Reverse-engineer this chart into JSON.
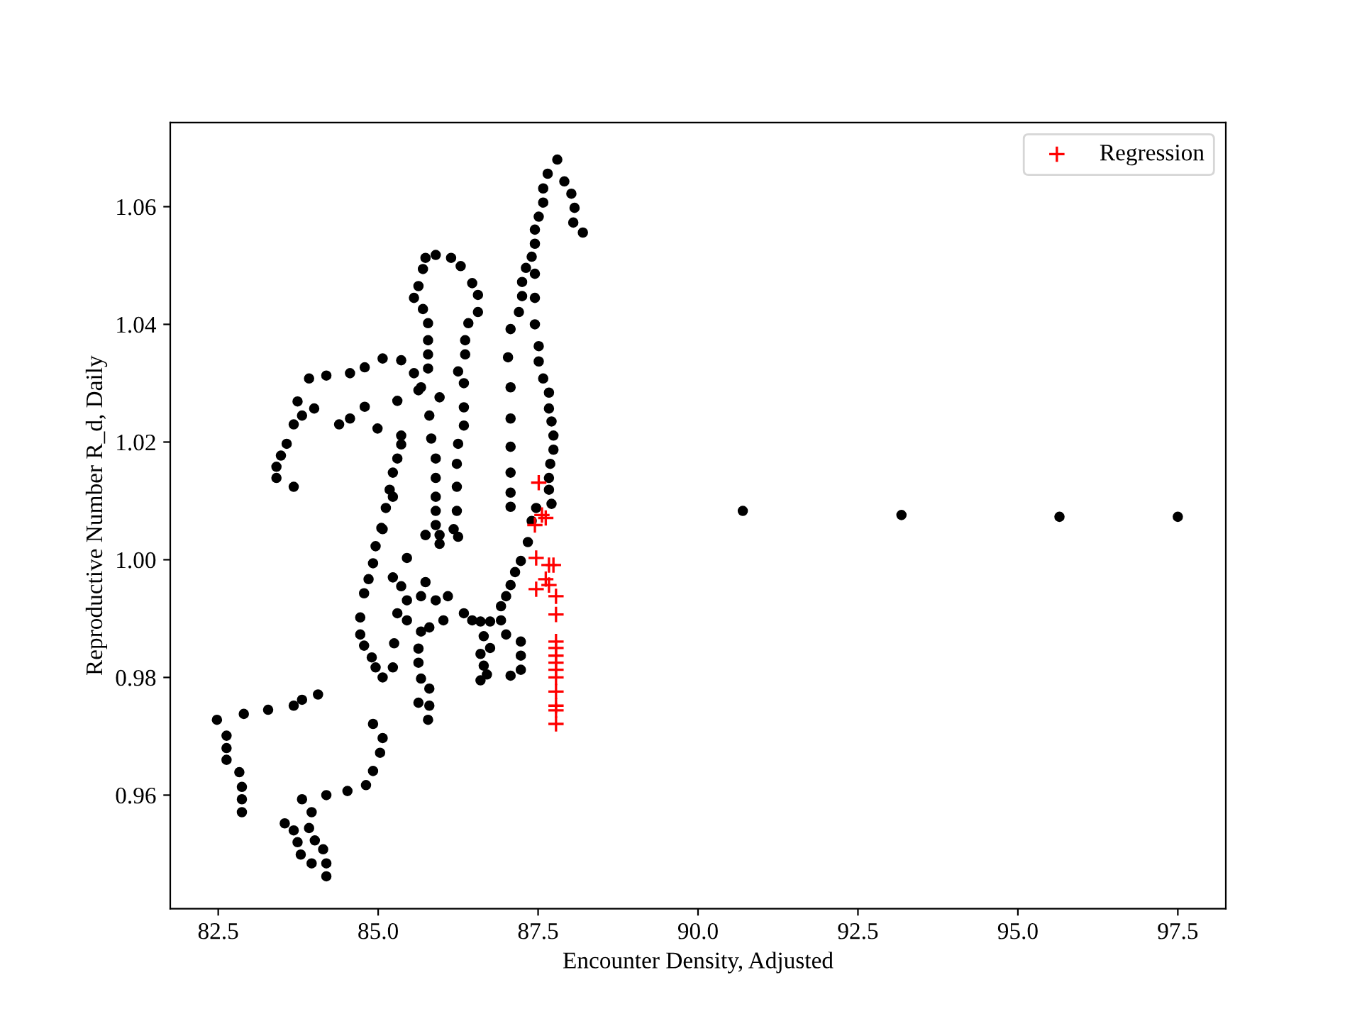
{
  "chart_data": {
    "type": "scatter",
    "xlabel": "Encounter Density, Adjusted",
    "ylabel": "Reproductive Number R_d, Daily",
    "xlim": [
      81.75,
      98.25
    ],
    "ylim": [
      0.9407,
      1.0743
    ],
    "xticks": [
      {
        "value": 82.5,
        "label": "82.5"
      },
      {
        "value": 85,
        "label": "85.0"
      },
      {
        "value": 87.5,
        "label": "87.5"
      },
      {
        "value": 90,
        "label": "90.0"
      },
      {
        "value": 92.5,
        "label": "92.5"
      },
      {
        "value": 95,
        "label": "95.0"
      },
      {
        "value": 97.5,
        "label": "97.5"
      }
    ],
    "yticks": [
      {
        "value": 0.96,
        "label": "0.96"
      },
      {
        "value": 0.98,
        "label": "0.98"
      },
      {
        "value": 1.0,
        "label": "1.00"
      },
      {
        "value": 1.02,
        "label": "1.02"
      },
      {
        "value": 1.04,
        "label": "1.04"
      },
      {
        "value": 1.06,
        "label": "1.06"
      }
    ],
    "grid": false,
    "legend": "top right",
    "series": [
      {
        "color": "#000000",
        "marker": "circle",
        "x": [
          82.48,
          82.63,
          82.63,
          82.63,
          82.83,
          82.87,
          82.87,
          82.87,
          82.9,
          83.28,
          83.68,
          83.81,
          84.06,
          83.54,
          83.68,
          83.74,
          83.79,
          83.96,
          84.19,
          84.19,
          84.14,
          84.01,
          83.92,
          83.96,
          83.81,
          84.19,
          84.52,
          84.81,
          84.92,
          85.03,
          85.07,
          84.92,
          85.07,
          84.96,
          84.9,
          84.78,
          84.72,
          84.72,
          84.78,
          84.85,
          84.92,
          84.96,
          85.07,
          85.05,
          85.12,
          85.23,
          85.18,
          85.23,
          85.3,
          85.36,
          85.36,
          85.3,
          84.99,
          83.41,
          83.41,
          83.48,
          83.57,
          83.68,
          83.81,
          83.74,
          83.92,
          84.19,
          84.56,
          84.79,
          85.07,
          85.36,
          85.56,
          85.67,
          85.96,
          83.68,
          84.0,
          84.39,
          84.56,
          84.79,
          85.56,
          85.63,
          85.7,
          85.74,
          85.9,
          86.14,
          86.29,
          86.47,
          86.56,
          86.56,
          86.41,
          86.36,
          86.36,
          86.25,
          86.34,
          86.34,
          86.34,
          86.25,
          86.23,
          86.23,
          86.23,
          86.18,
          85.7,
          85.78,
          85.78,
          85.78,
          85.78,
          85.63,
          85.8,
          85.83,
          85.9,
          85.9,
          85.9,
          85.9,
          85.9,
          85.74,
          85.96,
          87.07,
          87.03,
          87.07,
          87.07,
          87.07,
          87.07,
          87.07,
          87.07,
          87.2,
          87.25,
          87.25,
          87.31,
          87.4,
          87.45,
          87.45,
          87.51,
          87.58,
          87.58,
          87.65,
          87.8,
          87.91,
          88.02,
          88.07,
          88.05,
          88.2,
          87.45,
          87.45,
          87.45,
          87.51,
          87.51,
          87.58,
          87.67,
          87.67,
          87.71,
          87.74,
          87.74,
          87.69,
          87.67,
          87.67,
          87.71,
          87.47,
          87.4,
          87.34,
          87.23,
          87.14,
          87.07,
          87.0,
          86.92,
          86.92,
          87.0,
          87.23,
          87.23,
          87.23,
          87.07,
          86.6,
          86.75,
          86.65,
          86.75,
          86.6,
          86.65,
          86.6,
          86.7,
          86.09,
          86.34,
          86.47,
          85.45,
          85.23,
          85.36,
          85.45,
          85.3,
          85.67,
          85.74,
          85.9,
          85.45,
          85.25,
          85.23,
          85.67,
          85.8,
          86.02,
          85.63,
          85.63,
          85.67,
          85.8,
          85.8,
          85.78,
          85.63,
          85.74,
          85.96,
          86.25,
          90.7,
          93.18,
          95.65,
          97.5
        ],
        "values": [
          0.9728,
          0.9701,
          0.968,
          0.966,
          0.9639,
          0.9614,
          0.9593,
          0.9571,
          0.9738,
          0.9745,
          0.9752,
          0.9762,
          0.9771,
          0.9552,
          0.954,
          0.952,
          0.9499,
          0.9484,
          0.9462,
          0.9484,
          0.9508,
          0.9523,
          0.9544,
          0.9571,
          0.9593,
          0.96,
          0.9607,
          0.9617,
          0.9641,
          0.9672,
          0.9697,
          0.9721,
          0.98,
          0.9817,
          0.9834,
          0.9854,
          0.9873,
          0.9902,
          0.9943,
          0.9967,
          0.9994,
          1.0023,
          1.0052,
          1.0054,
          1.0088,
          1.0107,
          1.0119,
          1.0148,
          1.0172,
          1.0196,
          1.0211,
          1.027,
          1.0223,
          1.0139,
          1.0158,
          1.0177,
          1.0197,
          1.023,
          1.0245,
          1.0269,
          1.0308,
          1.0313,
          1.0317,
          1.0327,
          1.0342,
          1.0339,
          1.0317,
          1.0293,
          1.0276,
          1.0124,
          1.0257,
          1.023,
          1.024,
          1.026,
          1.0445,
          1.0465,
          1.0494,
          1.0513,
          1.0518,
          1.0513,
          1.0499,
          1.047,
          1.045,
          1.0421,
          1.0402,
          1.0373,
          1.0349,
          1.032,
          1.03,
          1.0259,
          1.0228,
          1.0197,
          1.0163,
          1.0124,
          1.0083,
          1.0052,
          1.0426,
          1.0402,
          1.0373,
          1.0349,
          1.0325,
          1.0288,
          1.0245,
          1.0206,
          1.0172,
          1.0139,
          1.0107,
          1.0083,
          1.0059,
          1.0042,
          1.0042,
          1.0392,
          1.0344,
          1.0293,
          1.024,
          1.0192,
          1.0148,
          1.0114,
          1.009,
          1.0421,
          1.0448,
          1.0472,
          1.0496,
          1.0515,
          1.0537,
          1.0561,
          1.0583,
          1.0607,
          1.0631,
          1.0656,
          1.068,
          1.0643,
          1.0622,
          1.0598,
          1.0573,
          1.0556,
          1.0486,
          1.0445,
          1.04,
          1.0363,
          1.0337,
          1.0308,
          1.0284,
          1.0257,
          1.0235,
          1.0211,
          1.0187,
          1.0163,
          1.0139,
          1.0119,
          1.0095,
          1.0088,
          1.0066,
          1.003,
          0.9998,
          0.9979,
          0.9957,
          0.9938,
          0.9921,
          0.9897,
          0.9873,
          0.9861,
          0.9837,
          0.9813,
          0.9803,
          0.9895,
          0.9895,
          0.987,
          0.985,
          0.984,
          0.982,
          0.9795,
          0.9805,
          0.9938,
          0.9909,
          0.9897,
          1.0003,
          0.997,
          0.9955,
          0.9931,
          0.9909,
          0.9938,
          0.9962,
          0.9931,
          0.9897,
          0.9858,
          0.9817,
          0.9878,
          0.9885,
          0.9897,
          0.9849,
          0.9825,
          0.9798,
          0.9781,
          0.9752,
          0.9728,
          0.9757,
          1.0042,
          1.0027,
          1.0039,
          1.0083,
          1.0076,
          1.0073,
          1.0073
        ]
      },
      {
        "name": "Regression",
        "color": "#ff0000",
        "marker": "cross",
        "x": [
          87.51,
          87.56,
          87.62,
          87.45,
          87.47,
          87.67,
          87.74,
          87.47,
          87.62,
          87.67,
          87.78,
          87.78,
          87.78,
          87.78,
          87.78,
          87.78,
          87.78,
          87.78,
          87.78,
          87.78,
          87.78,
          87.78
        ],
        "values": [
          1.0131,
          1.0076,
          1.0071,
          1.0059,
          1.0003,
          0.9991,
          0.9991,
          0.995,
          0.9967,
          0.9957,
          0.9938,
          0.9907,
          0.9861,
          0.985,
          0.9837,
          0.9825,
          0.9813,
          0.98,
          0.9776,
          0.9752,
          0.9744,
          0.9721
        ]
      }
    ]
  }
}
